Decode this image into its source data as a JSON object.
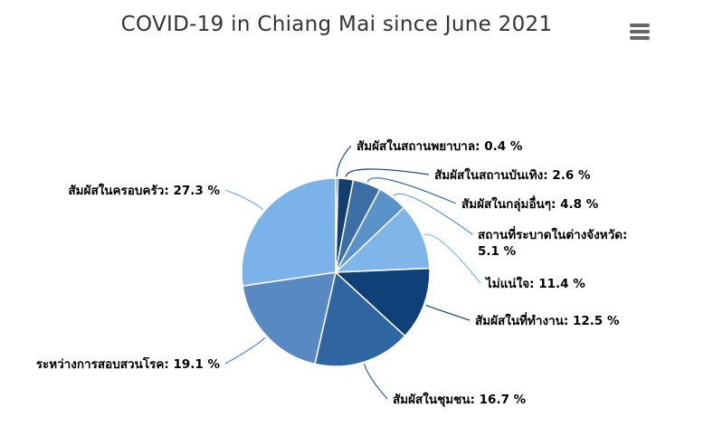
{
  "chart_data": {
    "type": "pie",
    "title": "COVID-19 in Chiang Mai since June 2021",
    "unit": "%",
    "slices": [
      {
        "label": "สัมผัสในสถานพยาบาล",
        "value": 0.4,
        "color": "#1e4e86"
      },
      {
        "label": "สัมผัสในสถานบันเทิง",
        "value": 2.6,
        "color": "#153e70"
      },
      {
        "label": "สัมผัสในกลุ่มอื่นๆ",
        "value": 4.8,
        "color": "#3a6ea5"
      },
      {
        "label": "สถานที่ระบาดในต่างจังหวัด",
        "value": 5.1,
        "color": "#5993c9"
      },
      {
        "label": "ไม่แน่ใจ",
        "value": 11.4,
        "color": "#80b5ea"
      },
      {
        "label": "สัมผัสในที่ทำงาน",
        "value": 12.5,
        "color": "#0f4178"
      },
      {
        "label": "สัมผัสในชุมชน",
        "value": 16.7,
        "color": "#2f65a0"
      },
      {
        "label": "ระหว่างการสอบสวนโรค",
        "value": 19.1,
        "color": "#5889c2"
      },
      {
        "label": "สัมผัสในครอบครัว",
        "value": 27.3,
        "color": "#7bb2e9"
      }
    ]
  },
  "menu": {
    "icon": "hamburger-menu-icon"
  }
}
